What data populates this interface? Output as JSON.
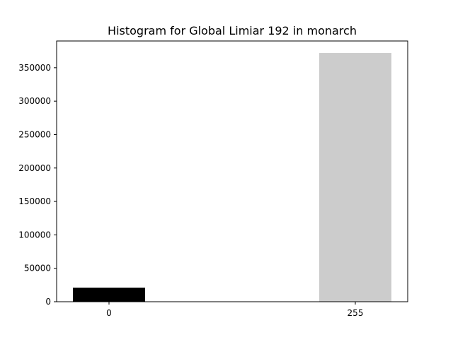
{
  "chart_data": {
    "type": "bar",
    "title": "Histogram for Global Limiar 192 in monarch",
    "xlabel": "",
    "ylabel": "",
    "categories": [
      "0",
      "255"
    ],
    "values": [
      21000,
      372000
    ],
    "colors": [
      "#000000",
      "#cccccc"
    ],
    "ylim": [
      0,
      390000
    ],
    "yticks": [
      0,
      50000,
      100000,
      150000,
      200000,
      250000,
      300000,
      350000
    ],
    "ytick_labels": [
      "0",
      "50000",
      "100000",
      "150000",
      "200000",
      "250000",
      "300000",
      "350000"
    ],
    "grid": false,
    "legend": "none"
  }
}
